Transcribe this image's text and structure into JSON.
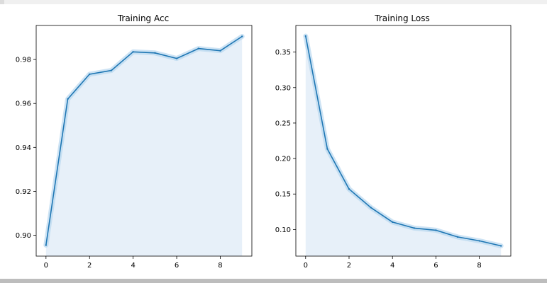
{
  "chart_data": [
    {
      "type": "area",
      "title": "Training Acc",
      "xlabel": "",
      "ylabel": "",
      "x": [
        0,
        1,
        2,
        3,
        4,
        5,
        6,
        7,
        8,
        9
      ],
      "series": [
        {
          "name": "Training Acc",
          "values": [
            0.8955,
            0.962,
            0.9733,
            0.975,
            0.9835,
            0.983,
            0.9805,
            0.985,
            0.984,
            0.9905
          ]
        }
      ],
      "xlim": [
        -0.45,
        9.45
      ],
      "ylim": [
        0.8905,
        0.9955
      ],
      "xticks": [
        0,
        2,
        4,
        6,
        8
      ],
      "xtick_labels": [
        "0",
        "2",
        "4",
        "6",
        "8"
      ],
      "yticks": [
        0.9,
        0.92,
        0.94,
        0.96,
        0.98
      ],
      "ytick_labels": [
        "0.90",
        "0.92",
        "0.94",
        "0.96",
        "0.98"
      ],
      "colors": {
        "line": "#1f77b4",
        "fill": "#e7f0f9",
        "glow": "#b8d7ef"
      }
    },
    {
      "type": "area",
      "title": "Training Loss",
      "xlabel": "",
      "ylabel": "",
      "x": [
        0,
        1,
        2,
        3,
        4,
        5,
        6,
        7,
        8,
        9
      ],
      "series": [
        {
          "name": "Training Loss",
          "values": [
            0.3725,
            0.2135,
            0.157,
            0.131,
            0.1105,
            0.102,
            0.099,
            0.0895,
            0.084,
            0.077
          ]
        }
      ],
      "xlim": [
        -0.45,
        9.45
      ],
      "ylim": [
        0.0625,
        0.3875
      ],
      "xticks": [
        0,
        2,
        4,
        6,
        8
      ],
      "xtick_labels": [
        "0",
        "2",
        "4",
        "6",
        "8"
      ],
      "yticks": [
        0.1,
        0.15,
        0.2,
        0.25,
        0.3,
        0.35
      ],
      "ytick_labels": [
        "0.10",
        "0.15",
        "0.20",
        "0.25",
        "0.30",
        "0.35"
      ],
      "colors": {
        "line": "#1f77b4",
        "fill": "#e7f0f9",
        "glow": "#b8d7ef"
      }
    }
  ]
}
